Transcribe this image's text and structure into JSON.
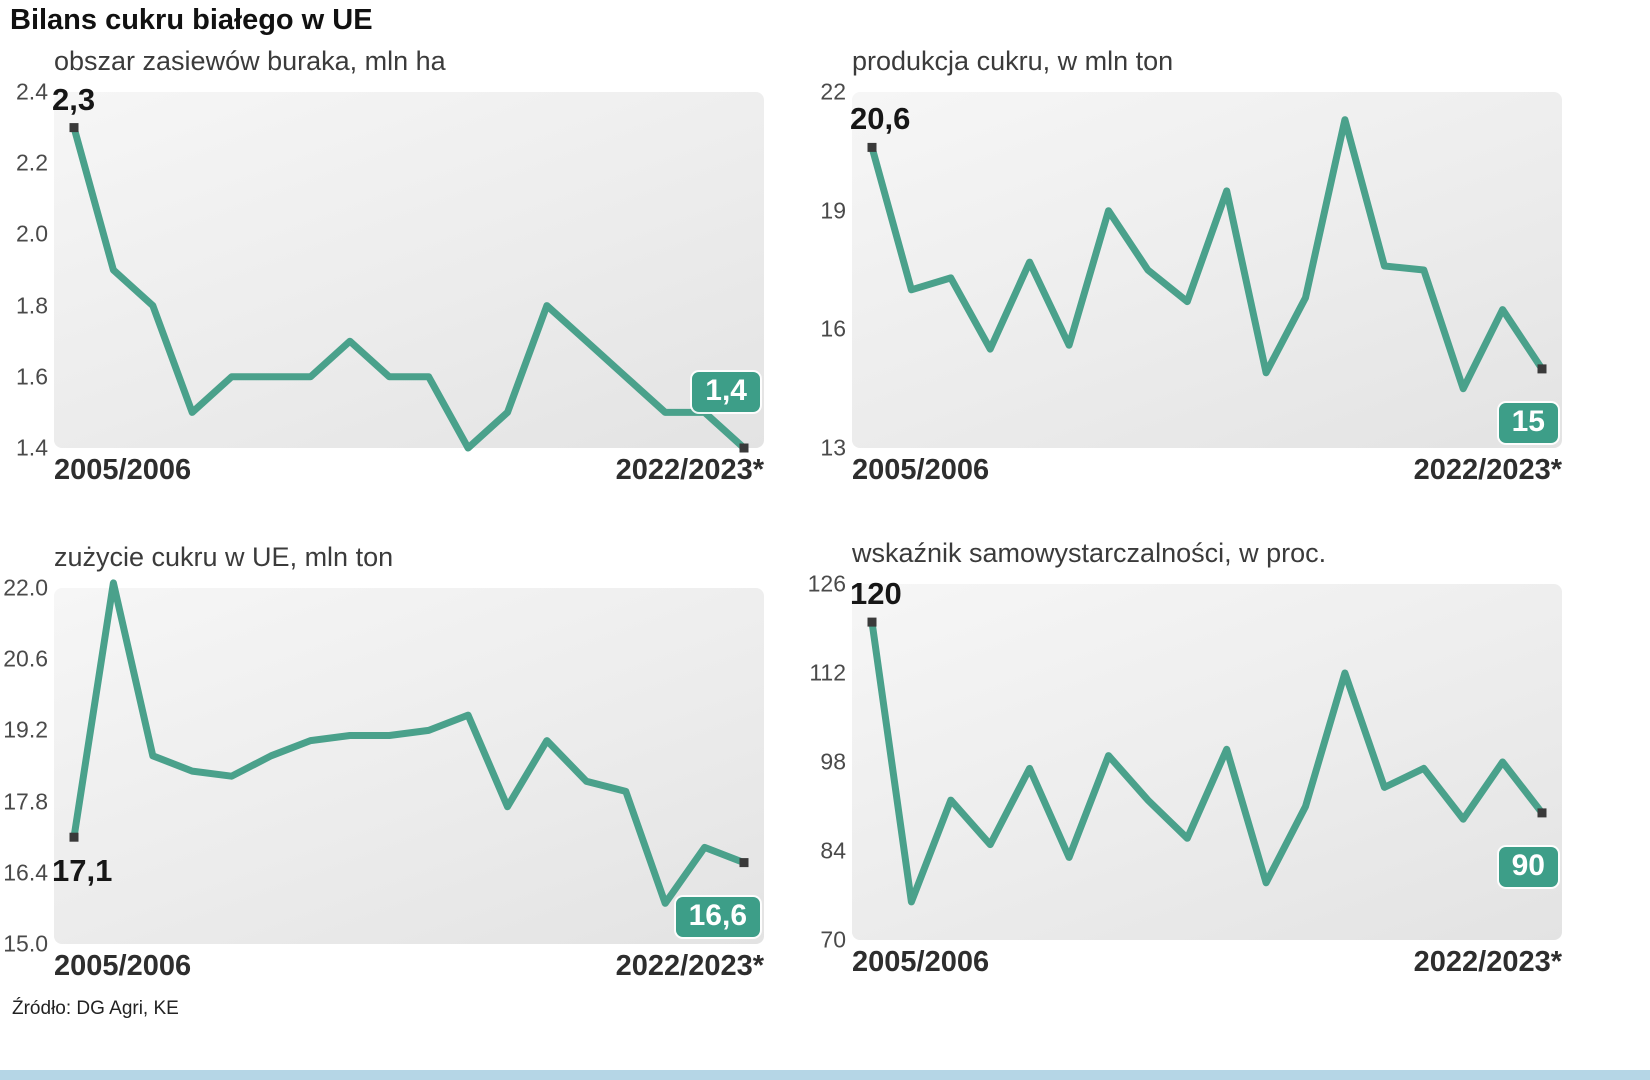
{
  "page": {
    "title": "Bilans cukru białego w UE",
    "source": "Źródło: DG Agri, KE"
  },
  "colors": {
    "line": "#4aa18b",
    "badge": "#3d9e88",
    "marker": "#3a3a3a",
    "accent_bar": "#b5d6e6"
  },
  "chart_data": [
    {
      "type": "line",
      "title": "obszar zasiewów buraka, mln ha",
      "x_start_label": "2005/2006",
      "x_end_label": "2022/2023*",
      "ylim": [
        1.4,
        2.4
      ],
      "yticks": [
        "2.4",
        "2.2",
        "2.0",
        "1.8",
        "1.6",
        "1.4"
      ],
      "ytick_values": [
        2.4,
        2.2,
        2.0,
        1.8,
        1.6,
        1.4
      ],
      "values": [
        2.3,
        1.9,
        1.8,
        1.5,
        1.6,
        1.6,
        1.6,
        1.7,
        1.6,
        1.6,
        1.4,
        1.5,
        1.8,
        1.7,
        1.6,
        1.5,
        1.5,
        1.4
      ],
      "start_label": "2,3",
      "end_label": "1,4",
      "start_label_pos": "above",
      "end_label_pos": "above",
      "grid": "off",
      "legend": "none"
    },
    {
      "type": "line",
      "title": "produkcja cukru, w mln ton",
      "x_start_label": "2005/2006",
      "x_end_label": "2022/2023*",
      "ylim": [
        13,
        22
      ],
      "yticks": [
        "22",
        "19",
        "16",
        "13"
      ],
      "ytick_values": [
        22,
        19,
        16,
        13
      ],
      "values": [
        20.6,
        17.0,
        17.3,
        15.5,
        17.7,
        15.6,
        19.0,
        17.5,
        16.7,
        19.5,
        14.9,
        16.8,
        21.3,
        17.6,
        17.5,
        14.5,
        16.5,
        15.0
      ],
      "start_label": "20,6",
      "end_label": "15",
      "start_label_pos": "above",
      "end_label_pos": "below",
      "grid": "off",
      "legend": "none"
    },
    {
      "type": "line",
      "title": "zużycie cukru w UE, mln ton",
      "x_start_label": "2005/2006",
      "x_end_label": "2022/2023*",
      "ylim": [
        15.0,
        22.0
      ],
      "yticks": [
        "22.0",
        "20.6",
        "19.2",
        "17.8",
        "16.4",
        "15.0"
      ],
      "ytick_values": [
        22.0,
        20.6,
        19.2,
        17.8,
        16.4,
        15.0
      ],
      "values": [
        17.1,
        22.1,
        18.7,
        18.4,
        18.3,
        18.7,
        19.0,
        19.1,
        19.1,
        19.2,
        19.5,
        17.7,
        19.0,
        18.2,
        18.0,
        15.8,
        16.9,
        16.6
      ],
      "start_label": "17,1",
      "end_label": "16,6",
      "start_label_pos": "below",
      "end_label_pos": "below",
      "grid": "off",
      "legend": "none"
    },
    {
      "type": "line",
      "title": "wskaźnik samowystarczalności, w proc.",
      "x_start_label": "2005/2006",
      "x_end_label": "2022/2023*",
      "ylim": [
        70,
        126
      ],
      "yticks": [
        "126",
        "112",
        "98",
        "84",
        "70"
      ],
      "ytick_values": [
        126,
        112,
        98,
        84,
        70
      ],
      "values": [
        120,
        76,
        92,
        85,
        97,
        83,
        99,
        92,
        86,
        100,
        79,
        91,
        112,
        94,
        97,
        89,
        98,
        90
      ],
      "start_label": "120",
      "end_label": "90",
      "start_label_pos": "above",
      "end_label_pos": "below",
      "grid": "off",
      "legend": "none"
    }
  ]
}
